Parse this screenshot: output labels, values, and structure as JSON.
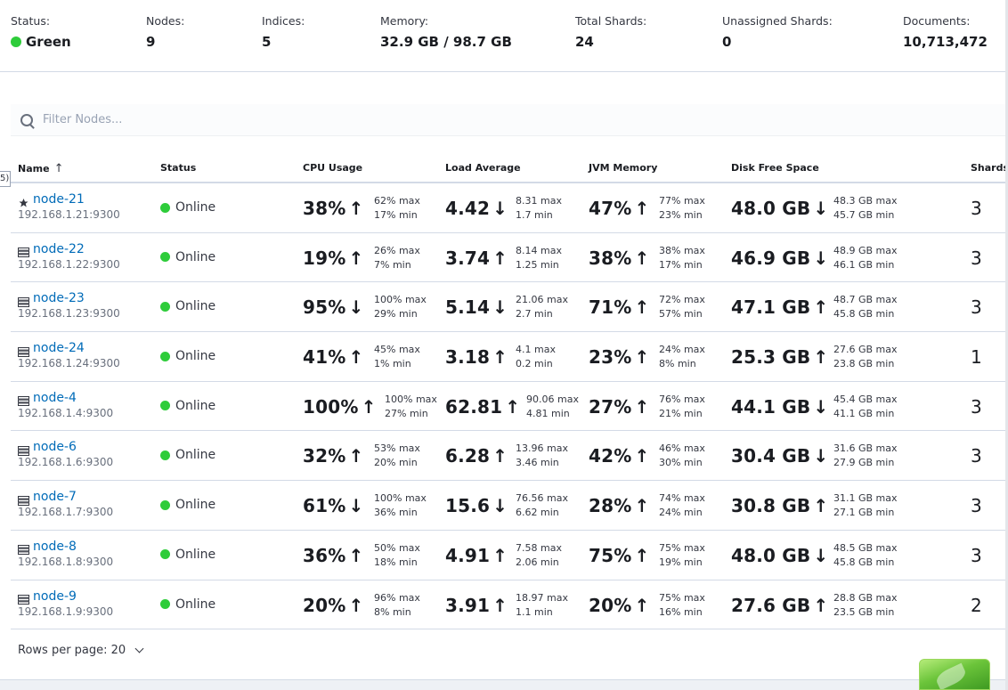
{
  "summary": {
    "status": {
      "label": "Status:",
      "value": "Green"
    },
    "nodes": {
      "label": "Nodes:",
      "value": "9"
    },
    "indices": {
      "label": "Indices:",
      "value": "5"
    },
    "memory": {
      "label": "Memory:",
      "value": "32.9 GB / 98.7 GB"
    },
    "total_shards": {
      "label": "Total Shards:",
      "value": "24"
    },
    "unassigned_shards": {
      "label": "Unassigned Shards:",
      "value": "0"
    },
    "documents": {
      "label": "Documents:",
      "value": "10,713,472"
    }
  },
  "filter": {
    "placeholder": "Filter Nodes..."
  },
  "edge_tab": "5)",
  "columns": {
    "name": "Name",
    "status": "Status",
    "cpu": "CPU Usage",
    "load": "Load Average",
    "jvm": "JVM Memory",
    "disk": "Disk Free Space",
    "shards": "Shards"
  },
  "rows": [
    {
      "name": "node-21",
      "icon": "star-icon",
      "ip": "192.168.1.21:9300",
      "status": "Online",
      "cpu": "38%",
      "cpu_trend": "up",
      "cpu_max": "62% max",
      "cpu_min": "17% min",
      "load": "4.42",
      "load_trend": "down",
      "load_max": "8.31 max",
      "load_min": "1.7 min",
      "jvm": "47%",
      "jvm_trend": "up",
      "jvm_max": "77% max",
      "jvm_min": "23% min",
      "disk": "48.0 GB",
      "disk_trend": "down",
      "disk_max": "48.3 GB max",
      "disk_min": "45.7 GB min",
      "shards": "3"
    },
    {
      "name": "node-22",
      "icon": "server-icon",
      "ip": "192.168.1.22:9300",
      "status": "Online",
      "cpu": "19%",
      "cpu_trend": "up",
      "cpu_max": "26% max",
      "cpu_min": "7% min",
      "load": "3.74",
      "load_trend": "up",
      "load_max": "8.14 max",
      "load_min": "1.25 min",
      "jvm": "38%",
      "jvm_trend": "up",
      "jvm_max": "38% max",
      "jvm_min": "17% min",
      "disk": "46.9 GB",
      "disk_trend": "down",
      "disk_max": "48.9 GB max",
      "disk_min": "46.1 GB min",
      "shards": "3"
    },
    {
      "name": "node-23",
      "icon": "server-icon",
      "ip": "192.168.1.23:9300",
      "status": "Online",
      "cpu": "95%",
      "cpu_trend": "down",
      "cpu_max": "100% max",
      "cpu_min": "29% min",
      "load": "5.14",
      "load_trend": "down",
      "load_max": "21.06 max",
      "load_min": "2.7 min",
      "jvm": "71%",
      "jvm_trend": "up",
      "jvm_max": "72% max",
      "jvm_min": "57% min",
      "disk": "47.1 GB",
      "disk_trend": "up",
      "disk_max": "48.7 GB max",
      "disk_min": "45.8 GB min",
      "shards": "3"
    },
    {
      "name": "node-24",
      "icon": "server-icon",
      "ip": "192.168.1.24:9300",
      "status": "Online",
      "cpu": "41%",
      "cpu_trend": "up",
      "cpu_max": "45% max",
      "cpu_min": "1% min",
      "load": "3.18",
      "load_trend": "up",
      "load_max": "4.1 max",
      "load_min": "0.2 min",
      "jvm": "23%",
      "jvm_trend": "up",
      "jvm_max": "24% max",
      "jvm_min": "8% min",
      "disk": "25.3 GB",
      "disk_trend": "up",
      "disk_max": "27.6 GB max",
      "disk_min": "23.8 GB min",
      "shards": "1"
    },
    {
      "name": "node-4",
      "icon": "server-icon",
      "ip": "192.168.1.4:9300",
      "status": "Online",
      "cpu": "100%",
      "cpu_trend": "up",
      "cpu_max": "100% max",
      "cpu_min": "27% min",
      "load": "62.81",
      "load_trend": "up",
      "load_max": "90.06 max",
      "load_min": "4.81 min",
      "jvm": "27%",
      "jvm_trend": "up",
      "jvm_max": "76% max",
      "jvm_min": "21% min",
      "disk": "44.1 GB",
      "disk_trend": "down",
      "disk_max": "45.4 GB max",
      "disk_min": "41.1 GB min",
      "shards": "3"
    },
    {
      "name": "node-6",
      "icon": "server-icon",
      "ip": "192.168.1.6:9300",
      "status": "Online",
      "cpu": "32%",
      "cpu_trend": "up",
      "cpu_max": "53% max",
      "cpu_min": "20% min",
      "load": "6.28",
      "load_trend": "up",
      "load_max": "13.96 max",
      "load_min": "3.46 min",
      "jvm": "42%",
      "jvm_trend": "up",
      "jvm_max": "46% max",
      "jvm_min": "30% min",
      "disk": "30.4 GB",
      "disk_trend": "down",
      "disk_max": "31.6 GB max",
      "disk_min": "27.9 GB min",
      "shards": "3"
    },
    {
      "name": "node-7",
      "icon": "server-icon",
      "ip": "192.168.1.7:9300",
      "status": "Online",
      "cpu": "61%",
      "cpu_trend": "down",
      "cpu_max": "100% max",
      "cpu_min": "36% min",
      "load": "15.6",
      "load_trend": "down",
      "load_max": "76.56 max",
      "load_min": "6.62 min",
      "jvm": "28%",
      "jvm_trend": "up",
      "jvm_max": "74% max",
      "jvm_min": "24% min",
      "disk": "30.8 GB",
      "disk_trend": "up",
      "disk_max": "31.1 GB max",
      "disk_min": "27.1 GB min",
      "shards": "3"
    },
    {
      "name": "node-8",
      "icon": "server-icon",
      "ip": "192.168.1.8:9300",
      "status": "Online",
      "cpu": "36%",
      "cpu_trend": "up",
      "cpu_max": "50% max",
      "cpu_min": "18% min",
      "load": "4.91",
      "load_trend": "up",
      "load_max": "7.58 max",
      "load_min": "2.06 min",
      "jvm": "75%",
      "jvm_trend": "up",
      "jvm_max": "75% max",
      "jvm_min": "19% min",
      "disk": "48.0 GB",
      "disk_trend": "down",
      "disk_max": "48.5 GB max",
      "disk_min": "45.8 GB min",
      "shards": "3"
    },
    {
      "name": "node-9",
      "icon": "server-icon",
      "ip": "192.168.1.9:9300",
      "status": "Online",
      "cpu": "20%",
      "cpu_trend": "up",
      "cpu_max": "96% max",
      "cpu_min": "8% min",
      "load": "3.91",
      "load_trend": "up",
      "load_max": "18.97 max",
      "load_min": "1.1 min",
      "jvm": "20%",
      "jvm_trend": "up",
      "jvm_max": "75% max",
      "jvm_min": "16% min",
      "disk": "27.6 GB",
      "disk_trend": "up",
      "disk_max": "28.8 GB max",
      "disk_min": "23.5 GB min",
      "shards": "2"
    }
  ],
  "footer": {
    "rows_per_page": "Rows per page: 20"
  },
  "colors": {
    "green": "#2ecc3a",
    "link": "#006bb8"
  }
}
